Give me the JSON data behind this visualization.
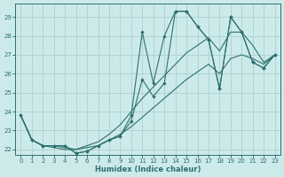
{
  "xlabel": "Humidex (Indice chaleur)",
  "bg_color": "#cdeaea",
  "grid_color": "#b0d4d4",
  "line_color": "#2d7070",
  "xlim": [
    -0.5,
    23.5
  ],
  "ylim": [
    21.7,
    29.7
  ],
  "yticks": [
    22,
    23,
    24,
    25,
    26,
    27,
    28,
    29
  ],
  "xticks": [
    0,
    1,
    2,
    3,
    4,
    5,
    6,
    7,
    8,
    9,
    10,
    11,
    12,
    13,
    14,
    15,
    16,
    17,
    18,
    19,
    20,
    21,
    22,
    23
  ],
  "line1_x": [
    0,
    1,
    2,
    3,
    4,
    5,
    6,
    7,
    8,
    9,
    10,
    11,
    12,
    13,
    14,
    15,
    16,
    17,
    18,
    19,
    20,
    21,
    22,
    23
  ],
  "line1_y": [
    23.8,
    22.5,
    22.2,
    22.2,
    22.2,
    21.8,
    21.9,
    22.2,
    22.5,
    22.7,
    23.8,
    28.2,
    25.5,
    28.0,
    29.3,
    29.3,
    28.5,
    27.8,
    25.2,
    29.0,
    28.2,
    26.6,
    26.3,
    27.0
  ],
  "line2_x": [
    0,
    1,
    2,
    3,
    4,
    5,
    6,
    7,
    8,
    9,
    10,
    11,
    12,
    13,
    14,
    15,
    16,
    17,
    18,
    19,
    20,
    21,
    22,
    23
  ],
  "line2_y": [
    23.8,
    22.5,
    22.2,
    22.2,
    22.2,
    21.8,
    21.9,
    22.2,
    22.5,
    22.7,
    23.5,
    25.7,
    24.8,
    25.5,
    29.3,
    29.3,
    28.5,
    27.8,
    25.2,
    29.0,
    28.2,
    26.6,
    26.3,
    27.0
  ],
  "line3_x": [
    0,
    1,
    2,
    3,
    4,
    5,
    6,
    7,
    8,
    9,
    10,
    11,
    12,
    13,
    14,
    15,
    16,
    17,
    18,
    19,
    20,
    21,
    22,
    23
  ],
  "line3_y": [
    23.8,
    22.5,
    22.2,
    22.2,
    22.1,
    22.0,
    22.2,
    22.4,
    22.8,
    23.3,
    24.0,
    24.7,
    25.3,
    25.9,
    26.5,
    27.1,
    27.5,
    27.9,
    27.2,
    28.2,
    28.2,
    27.5,
    26.6,
    27.0
  ],
  "line4_x": [
    0,
    1,
    2,
    3,
    4,
    5,
    6,
    7,
    8,
    9,
    10,
    11,
    12,
    13,
    14,
    15,
    16,
    17,
    18,
    19,
    20,
    21,
    22,
    23
  ],
  "line4_y": [
    23.8,
    22.5,
    22.2,
    22.1,
    22.0,
    22.0,
    22.1,
    22.2,
    22.5,
    22.8,
    23.2,
    23.7,
    24.2,
    24.7,
    25.2,
    25.7,
    26.1,
    26.5,
    26.0,
    26.8,
    27.0,
    26.8,
    26.5,
    27.0
  ]
}
